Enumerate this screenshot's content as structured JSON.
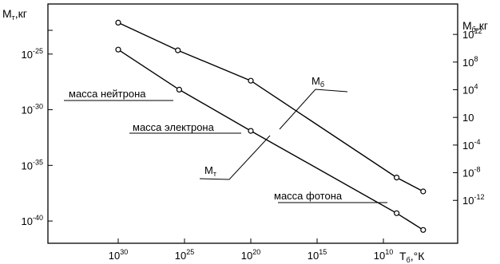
{
  "chart_data": {
    "type": "line",
    "title": "",
    "left_axis": {
      "label_main": "M",
      "label_sub": "т",
      "label_suffix": ",кг",
      "log": true,
      "range_exp": [
        -42,
        -20.5
      ],
      "ticks": [
        {
          "exp": -25,
          "base": "10",
          "sup": "-25"
        },
        {
          "exp": -30,
          "base": "10",
          "sup": "-30"
        },
        {
          "exp": -35,
          "base": "10",
          "sup": "-35"
        },
        {
          "exp": -40,
          "base": "10",
          "sup": "-40"
        }
      ]
    },
    "right_axis": {
      "label_main": "M",
      "label_sub": "б",
      "label_suffix": ",кг",
      "log": true,
      "range_exp": [
        -18.2,
        16.4
      ],
      "ticks": [
        {
          "exp": 12,
          "base": "10",
          "sup": "12"
        },
        {
          "exp": 8,
          "base": "10",
          "sup": "8"
        },
        {
          "exp": 4,
          "base": "10",
          "sup": "4"
        },
        {
          "exp": 0,
          "base": "10",
          "sup": ""
        },
        {
          "exp": -4,
          "base": "10",
          "sup": "-4"
        },
        {
          "exp": -8,
          "base": "10",
          "sup": "-8"
        },
        {
          "exp": -12,
          "base": "10",
          "sup": "-12"
        }
      ]
    },
    "x_axis": {
      "label_main": "T",
      "label_sub": "б",
      "label_suffix": ",°К",
      "log": true,
      "reversed": true,
      "range_exp": [
        35.3,
        4.4
      ],
      "ticks": [
        {
          "exp": 30,
          "base": "10",
          "sup": "30"
        },
        {
          "exp": 25,
          "base": "10",
          "sup": "25"
        },
        {
          "exp": 20,
          "base": "10",
          "sup": "20"
        },
        {
          "exp": 15,
          "base": "10",
          "sup": "15"
        },
        {
          "exp": 10,
          "base": "10",
          "sup": "10"
        }
      ]
    },
    "series": [
      {
        "axis": "right",
        "points": [
          {
            "x_exp": 30,
            "y_exp": 13.7
          },
          {
            "x_exp": 25.5,
            "y_exp": 9.7
          },
          {
            "x_exp": 20,
            "y_exp": 5.3
          },
          {
            "x_exp": 9,
            "y_exp": -8.7
          },
          {
            "x_exp": 7,
            "y_exp": -10.7
          }
        ]
      },
      {
        "axis": "left",
        "points": [
          {
            "x_exp": 30,
            "y_exp": -24.6
          },
          {
            "x_exp": 25.4,
            "y_exp": -28.2
          },
          {
            "x_exp": 20,
            "y_exp": -31.9
          },
          {
            "x_exp": 9,
            "y_exp": -39.3
          },
          {
            "x_exp": 7,
            "y_exp": -40.8
          }
        ]
      }
    ],
    "annotations": [
      {
        "text": "масса нейтрона"
      },
      {
        "text": "масса электрона"
      },
      {
        "text": "масса фотона"
      },
      {
        "main": "M",
        "sub": "б"
      },
      {
        "main": "M",
        "sub": "т"
      }
    ]
  }
}
